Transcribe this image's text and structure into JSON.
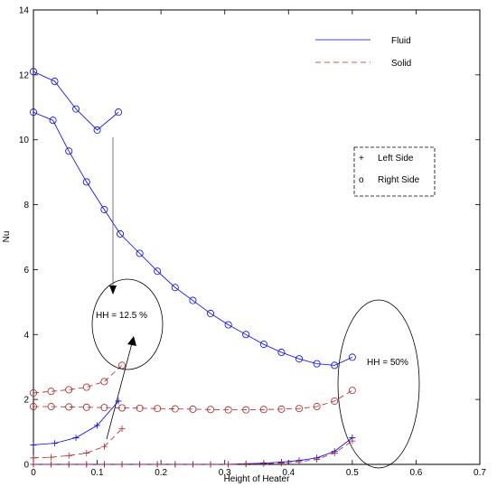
{
  "chart_data": {
    "type": "line",
    "xlabel": "Height of Heater",
    "ylabel": "Nu",
    "xlim": [
      0,
      0.7
    ],
    "ylim": [
      0,
      14
    ],
    "xticks": [
      "0",
      "0.1",
      "0.2",
      "0.3",
      "0.4",
      "0.5",
      "0.6",
      "0.7"
    ],
    "yticks": [
      "0",
      "2",
      "4",
      "6",
      "8",
      "10",
      "12",
      "14"
    ],
    "grid": false,
    "legend_placement": "top-right",
    "legend_fluid": "Fluid",
    "legend_solid": "Solid",
    "marker_legend_left_symbol": "+",
    "marker_legend_left": "Left Side",
    "marker_legend_right_symbol": "o",
    "marker_legend_right": "Right Side",
    "annotation_hh125": "HH = 12.5 %",
    "annotation_hh50": "HH = 50%",
    "colors": {
      "fluid": "#0000ff",
      "solid": "#b22222"
    },
    "series": [
      {
        "material": "fluid",
        "side": "right",
        "marker": "o",
        "x": [
          0,
          0.0333,
          0.0667,
          0.1,
          0.1333
        ],
        "y": [
          12.1,
          11.8,
          10.95,
          10.3,
          10.85
        ]
      },
      {
        "material": "fluid",
        "side": "right",
        "marker": "o",
        "x": [
          0,
          0.0306,
          0.0556,
          0.0833,
          0.1111,
          0.1361,
          0.1667,
          0.1944,
          0.2222,
          0.25,
          0.2778,
          0.3056,
          0.3333,
          0.3611,
          0.3889,
          0.4167,
          0.4444,
          0.4722,
          0.5
        ],
        "y": [
          10.85,
          10.6,
          9.65,
          8.7,
          7.85,
          7.1,
          6.5,
          5.95,
          5.45,
          5.05,
          4.65,
          4.3,
          4.0,
          3.7,
          3.45,
          3.25,
          3.1,
          3.05,
          3.3
        ]
      },
      {
        "material": "fluid",
        "side": "left",
        "marker": "+",
        "x": [
          0,
          0.0333,
          0.0667,
          0.1,
          0.1333
        ],
        "y": [
          0.6,
          0.65,
          0.82,
          1.2,
          1.95
        ]
      },
      {
        "material": "fluid",
        "side": "left",
        "marker": "+",
        "x": [
          0,
          0.0278,
          0.0556,
          0.0833,
          0.1111,
          0.1389,
          0.1667,
          0.1944,
          0.2222,
          0.25,
          0.2778,
          0.3056,
          0.3333,
          0.3611,
          0.3889,
          0.4167,
          0.4444,
          0.4722,
          0.5
        ],
        "y": [
          0,
          0,
          0,
          0,
          0,
          0,
          0,
          0,
          0,
          0,
          0,
          0,
          0.02,
          0.04,
          0.07,
          0.12,
          0.2,
          0.4,
          0.82
        ]
      },
      {
        "material": "solid",
        "side": "right",
        "marker": "o",
        "x": [
          0,
          0.0278,
          0.0556,
          0.0833,
          0.1111,
          0.1389
        ],
        "y": [
          2.2,
          2.25,
          2.3,
          2.38,
          2.55,
          3.05
        ]
      },
      {
        "material": "solid",
        "side": "right",
        "marker": "o",
        "x": [
          0,
          0.0278,
          0.0556,
          0.0833,
          0.1111,
          0.1389,
          0.1667,
          0.1944,
          0.2222,
          0.25,
          0.2778,
          0.3056,
          0.3333,
          0.3611,
          0.3889,
          0.4167,
          0.4444,
          0.4722,
          0.5
        ],
        "y": [
          1.78,
          1.78,
          1.77,
          1.76,
          1.75,
          1.74,
          1.73,
          1.72,
          1.71,
          1.7,
          1.69,
          1.68,
          1.68,
          1.69,
          1.7,
          1.72,
          1.78,
          1.95,
          2.28
        ]
      },
      {
        "material": "solid",
        "side": "left",
        "marker": "+",
        "x": [
          0,
          0.0278,
          0.0556,
          0.0833,
          0.1111,
          0.1389
        ],
        "y": [
          0.2,
          0.22,
          0.27,
          0.35,
          0.55,
          1.1
        ]
      },
      {
        "material": "solid",
        "side": "left",
        "marker": "+",
        "x": [
          0,
          0.0278,
          0.0556,
          0.0833,
          0.1111,
          0.1389,
          0.1667,
          0.1944,
          0.2222,
          0.25,
          0.2778,
          0.3056,
          0.3333,
          0.3611,
          0.3889,
          0.4167,
          0.4444,
          0.4722,
          0.5
        ],
        "y": [
          0,
          0,
          0,
          0,
          0,
          0,
          0,
          0,
          0,
          0,
          0,
          0,
          0.01,
          0.02,
          0.04,
          0.08,
          0.15,
          0.35,
          0.72
        ]
      }
    ]
  }
}
